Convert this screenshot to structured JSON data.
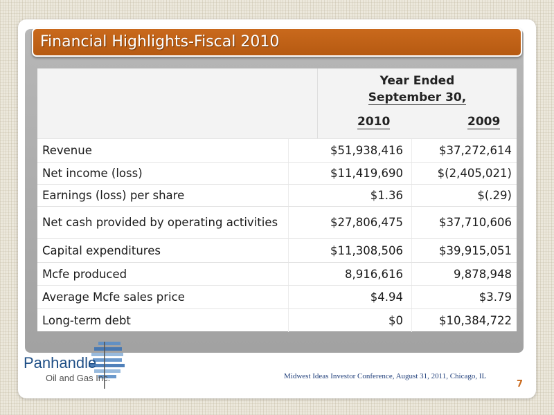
{
  "slide": {
    "title": "Financial Highlights-Fiscal 2010",
    "page_number": "7",
    "footer": "Midwest Ideas Investor Conference, August 31, 2011, Chicago, IL"
  },
  "table": {
    "header_line1": "Year Ended",
    "header_line2": "September 30,",
    "columns": [
      "2010",
      "2009"
    ],
    "rows": [
      {
        "label": "Revenue",
        "v2010": "$51,938,416",
        "v2009": "$37,272,614"
      },
      {
        "label": "Net income (loss)",
        "v2010": "$11,419,690",
        "v2009": "$(2,405,021)"
      },
      {
        "label": "Earnings (loss) per share",
        "v2010": "$1.36",
        "v2009": "$(.29)"
      },
      {
        "label": "Net cash provided by operating activities",
        "v2010": "$27,806,475",
        "v2009": "$37,710,606"
      },
      {
        "label": "Capital expenditures",
        "v2010": "$11,308,506",
        "v2009": "$39,915,051"
      },
      {
        "label": "Mcfe produced",
        "v2010": "8,916,616",
        "v2009": "9,878,948"
      },
      {
        "label": "Average Mcfe sales price",
        "v2010": "$4.94",
        "v2009": "$3.79"
      },
      {
        "label": "Long-term debt",
        "v2010": "$0",
        "v2009": "$10,384,722"
      }
    ]
  },
  "logo": {
    "line1": "Panhandle",
    "line2": "Oil and Gas Inc."
  },
  "colors": {
    "title_bar": "#c0621a",
    "logo_blue": "#1f4f86",
    "page_number": "#c96a1e"
  }
}
